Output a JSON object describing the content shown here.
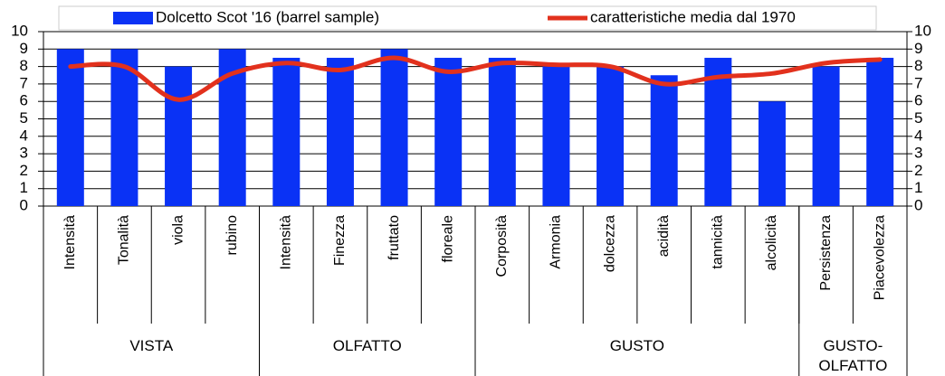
{
  "chart_data": {
    "type": "bar_line",
    "categories": [
      "Intensità",
      "Tonalità",
      "viola",
      "rubino",
      "Intensità",
      "Finezza",
      "fruttato",
      "floreale",
      "Corposità",
      "Armonia",
      "dolcezza",
      "acidità",
      "tannicità",
      "alcolicità",
      "Persistenza",
      "Piacevolezza"
    ],
    "category_groups": [
      {
        "label": "VISTA",
        "count": 4
      },
      {
        "label": "OLFATTO",
        "count": 4
      },
      {
        "label": "GUSTO",
        "count": 6
      },
      {
        "label": "GUSTO-OLFATTO",
        "count": 2
      }
    ],
    "series": [
      {
        "name": "Dolcetto Scot '16 (barrel sample)",
        "type": "bar",
        "color": "#0a32f5",
        "values": [
          9,
          9,
          8,
          9,
          8.5,
          8.5,
          9,
          8.5,
          8.5,
          8,
          8,
          7.5,
          8.5,
          6,
          8,
          8.5
        ]
      },
      {
        "name": "caratteristiche media dal 1970",
        "type": "line",
        "axis": "y2",
        "color": "#e2311d",
        "values": [
          8,
          8,
          6.1,
          7.6,
          8.2,
          7.8,
          8.5,
          7.7,
          8.2,
          8.1,
          8,
          7,
          7.4,
          7.6,
          8.2,
          8.4
        ]
      }
    ],
    "ylim": [
      0,
      10
    ],
    "yticks": [
      0,
      1,
      2,
      3,
      4,
      5,
      6,
      7,
      8,
      9,
      10
    ],
    "y2lim": [
      0,
      10
    ],
    "y2ticks": [
      0,
      1,
      2,
      3,
      4,
      5,
      6,
      7,
      8,
      9,
      10
    ],
    "grid": true,
    "legend": "top"
  }
}
